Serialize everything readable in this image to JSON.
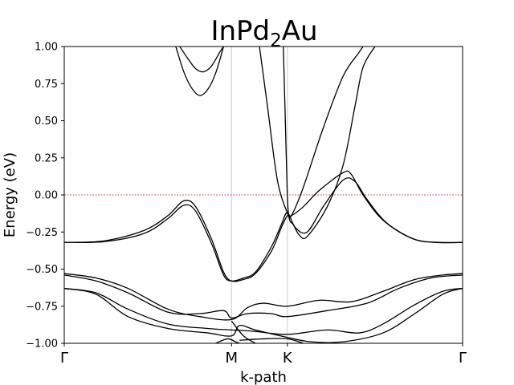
{
  "chart_data": {
    "type": "line",
    "title_main": "InPd",
    "title_sub": "2",
    "title_end": "Au",
    "xlabel": "k-path",
    "ylabel": "Energy (eV)",
    "ylim": [
      -1.0,
      1.0
    ],
    "yticks": [
      {
        "value": 1.0,
        "label": "1.00"
      },
      {
        "value": 0.75,
        "label": "0.75"
      },
      {
        "value": 0.5,
        "label": "0.50"
      },
      {
        "value": 0.25,
        "label": "0.25"
      },
      {
        "value": 0.0,
        "label": "0.00"
      },
      {
        "value": -0.25,
        "label": "−0.25"
      },
      {
        "value": -0.5,
        "label": "−0.50"
      },
      {
        "value": -0.75,
        "label": "−0.75"
      },
      {
        "value": -1.0,
        "label": "−1.00"
      }
    ],
    "xlim": [
      0,
      1
    ],
    "high_symmetry_points": [
      {
        "label": "Γ",
        "k": 0.0
      },
      {
        "label": "M",
        "k": 0.42
      },
      {
        "label": "K",
        "k": 0.56
      },
      {
        "label": "Γ",
        "k": 1.0
      }
    ],
    "fermi_level": 0.0,
    "colors": {
      "bands": "#000000",
      "fermi": "#d62728",
      "vlines": "#cccccc"
    },
    "bands": [
      {
        "points": [
          [
            0,
            -0.32
          ],
          [
            0.1,
            -0.31
          ],
          [
            0.2,
            -0.24
          ],
          [
            0.26,
            -0.14
          ],
          [
            0.3,
            -0.04
          ],
          [
            0.33,
            -0.08
          ],
          [
            0.37,
            -0.3
          ],
          [
            0.4,
            -0.52
          ],
          [
            0.42,
            -0.58
          ],
          [
            0.45,
            -0.57
          ],
          [
            0.48,
            -0.53
          ],
          [
            0.52,
            -0.38
          ],
          [
            0.545,
            -0.22
          ],
          [
            0.56,
            -0.14
          ],
          [
            0.57,
            -0.14
          ],
          [
            0.6,
            -0.08
          ],
          [
            0.64,
            0.03
          ],
          [
            0.7,
            0.15
          ],
          [
            0.72,
            0.14
          ],
          [
            0.75,
            0.0
          ],
          [
            0.8,
            -0.17
          ],
          [
            0.87,
            -0.29
          ],
          [
            0.93,
            -0.32
          ],
          [
            1.0,
            -0.32
          ]
        ]
      },
      {
        "points": [
          [
            0,
            -0.32
          ],
          [
            0.1,
            -0.315
          ],
          [
            0.2,
            -0.26
          ],
          [
            0.26,
            -0.16
          ],
          [
            0.3,
            -0.07
          ],
          [
            0.33,
            -0.11
          ],
          [
            0.37,
            -0.33
          ],
          [
            0.4,
            -0.54
          ],
          [
            0.42,
            -0.58
          ],
          [
            0.45,
            -0.56
          ],
          [
            0.48,
            -0.52
          ],
          [
            0.52,
            -0.35
          ],
          [
            0.545,
            -0.2
          ],
          [
            0.56,
            -0.12
          ],
          [
            0.58,
            -0.22
          ],
          [
            0.61,
            -0.25
          ],
          [
            0.65,
            -0.08
          ],
          [
            0.7,
            0.1
          ],
          [
            0.73,
            0.09
          ],
          [
            0.76,
            -0.03
          ],
          [
            0.81,
            -0.19
          ],
          [
            0.88,
            -0.3
          ],
          [
            0.94,
            -0.32
          ],
          [
            1.0,
            -0.32
          ]
        ]
      },
      {
        "points": [
          [
            0.55,
            1.0
          ],
          [
            0.555,
            0.5
          ],
          [
            0.56,
            0.0
          ],
          [
            0.565,
            -0.16
          ],
          [
            0.575,
            -0.2
          ],
          [
            0.59,
            -0.27
          ],
          [
            0.61,
            -0.28
          ],
          [
            0.66,
            -0.08
          ],
          [
            0.7,
            0.2
          ],
          [
            0.73,
            0.6
          ],
          [
            0.75,
            0.86
          ],
          [
            0.78,
            1.0
          ]
        ]
      },
      {
        "points": [
          [
            0.49,
            1.0
          ],
          [
            0.51,
            0.6
          ],
          [
            0.535,
            0.1
          ],
          [
            0.56,
            -0.12
          ],
          [
            0.57,
            -0.14
          ],
          [
            0.6,
            0.05
          ],
          [
            0.65,
            0.45
          ],
          [
            0.7,
            0.8
          ],
          [
            0.74,
            0.96
          ],
          [
            0.75,
            1.0
          ]
        ]
      },
      {
        "points": [
          [
            0.28,
            1.0
          ],
          [
            0.3,
            0.83
          ],
          [
            0.32,
            0.72
          ],
          [
            0.34,
            0.67
          ],
          [
            0.36,
            0.71
          ],
          [
            0.38,
            0.82
          ],
          [
            0.4,
            1.0
          ]
        ]
      },
      {
        "points": [
          [
            0.29,
            1.0
          ],
          [
            0.31,
            0.92
          ],
          [
            0.33,
            0.85
          ],
          [
            0.35,
            0.83
          ],
          [
            0.37,
            0.87
          ],
          [
            0.39,
            0.96
          ],
          [
            0.4,
            1.0
          ]
        ]
      },
      {
        "points": [
          [
            0,
            -0.53
          ],
          [
            0.08,
            -0.56
          ],
          [
            0.16,
            -0.63
          ],
          [
            0.26,
            -0.77
          ],
          [
            0.34,
            -0.82
          ],
          [
            0.42,
            -0.84
          ],
          [
            0.46,
            -0.76
          ],
          [
            0.5,
            -0.73
          ],
          [
            0.56,
            -0.75
          ],
          [
            0.64,
            -0.71
          ],
          [
            0.72,
            -0.72
          ],
          [
            0.8,
            -0.65
          ],
          [
            0.88,
            -0.57
          ],
          [
            0.95,
            -0.54
          ],
          [
            1.0,
            -0.53
          ]
        ]
      },
      {
        "points": [
          [
            0,
            -0.54
          ],
          [
            0.08,
            -0.58
          ],
          [
            0.16,
            -0.66
          ],
          [
            0.26,
            -0.79
          ],
          [
            0.34,
            -0.8
          ],
          [
            0.4,
            -0.78
          ],
          [
            0.42,
            -0.83
          ],
          [
            0.46,
            -0.8
          ],
          [
            0.52,
            -0.8
          ],
          [
            0.56,
            -0.82
          ],
          [
            0.66,
            -0.78
          ],
          [
            0.76,
            -0.73
          ],
          [
            0.84,
            -0.63
          ],
          [
            0.92,
            -0.56
          ],
          [
            1.0,
            -0.54
          ]
        ]
      },
      {
        "points": [
          [
            0,
            -0.63
          ],
          [
            0.08,
            -0.66
          ],
          [
            0.16,
            -0.77
          ],
          [
            0.26,
            -0.87
          ],
          [
            0.36,
            -0.9
          ],
          [
            0.42,
            -0.91
          ],
          [
            0.48,
            -0.92
          ],
          [
            0.56,
            -0.94
          ],
          [
            0.66,
            -0.91
          ],
          [
            0.74,
            -0.93
          ],
          [
            0.8,
            -0.87
          ],
          [
            0.88,
            -0.74
          ],
          [
            0.95,
            -0.65
          ],
          [
            1.0,
            -0.63
          ]
        ]
      },
      {
        "points": [
          [
            0,
            -0.63
          ],
          [
            0.08,
            -0.67
          ],
          [
            0.16,
            -0.82
          ],
          [
            0.26,
            -0.9
          ],
          [
            0.36,
            -0.93
          ],
          [
            0.42,
            -0.95
          ],
          [
            0.44,
            -0.88
          ],
          [
            0.48,
            -0.91
          ],
          [
            0.56,
            -0.96
          ],
          [
            0.62,
            -0.99
          ],
          [
            0.7,
            -0.99
          ],
          [
            0.8,
            -0.93
          ],
          [
            0.88,
            -0.8
          ],
          [
            0.95,
            -0.67
          ],
          [
            1.0,
            -0.63
          ]
        ]
      },
      {
        "points": [
          [
            0.38,
            -1.0
          ],
          [
            0.41,
            -0.97
          ],
          [
            0.43,
            -0.99
          ],
          [
            0.44,
            -1.0
          ]
        ]
      },
      {
        "points": [
          [
            0.42,
            -0.85
          ],
          [
            0.45,
            -0.95
          ],
          [
            0.48,
            -1.0
          ]
        ]
      },
      {
        "points": [
          [
            0.44,
            -0.98
          ],
          [
            0.5,
            -0.97
          ],
          [
            0.56,
            -0.97
          ],
          [
            0.6,
            -1.0
          ]
        ]
      }
    ]
  }
}
